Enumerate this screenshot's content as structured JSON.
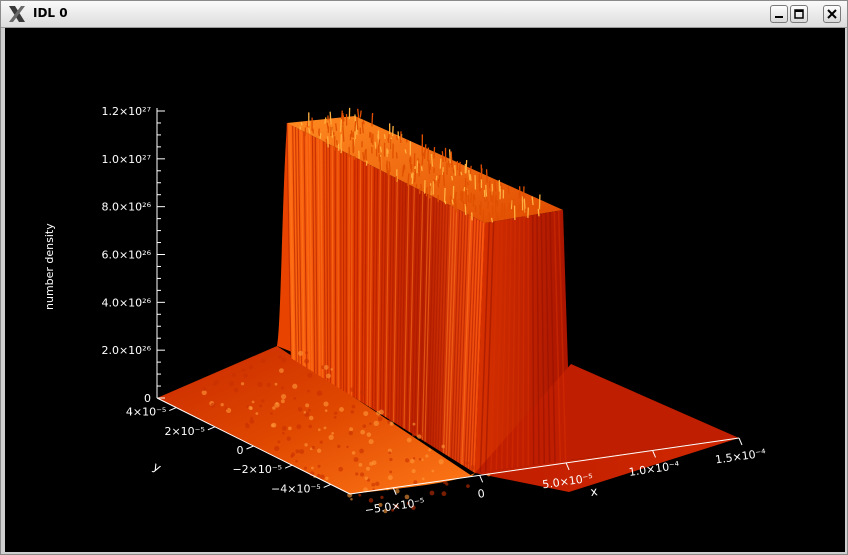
{
  "window": {
    "title": "IDL 0",
    "buttons": {
      "minimize": "minimize",
      "maximize": "maximize",
      "close": "close"
    }
  },
  "chart_data": {
    "type": "surface",
    "title": "",
    "zlabel": "number density",
    "xlabel": "x",
    "ylabel": "y",
    "zlim": [
      0,
      1.2e+27
    ],
    "z_ticks": [
      "0",
      "2.0×10²⁶",
      "4.0×10²⁶",
      "6.0×10²⁶",
      "8.0×10²⁶",
      "1.0×10²⁷",
      "1.2×10²⁷"
    ],
    "z_tick_values": [
      0,
      2e+26,
      4e+26,
      6e+26,
      8e+26,
      1e+27,
      1.2e+27
    ],
    "x_ticks": [
      "−5.0×10⁻⁵",
      "0",
      "5.0×10⁻⁵",
      "1.0×10⁻⁴",
      "1.5×10⁻⁴"
    ],
    "x_tick_values": [
      -5e-05,
      0,
      5e-05,
      0.0001,
      0.00015
    ],
    "y_ticks": [
      "4×10⁻⁵",
      "2×10⁻⁵",
      "0",
      "−2×10⁻⁵",
      "−4×10⁻⁵"
    ],
    "y_tick_values": [
      4e-05,
      2e-05,
      0,
      -2e-05,
      -4e-05
    ],
    "slab": {
      "x_start": 1e-05,
      "x_end": 5e-05,
      "density": 1e+27
    },
    "colors": {
      "background": "#000000",
      "surface_dark": "#b01800",
      "surface_mid": "#e04000",
      "surface_light": "#ff8a20"
    }
  }
}
